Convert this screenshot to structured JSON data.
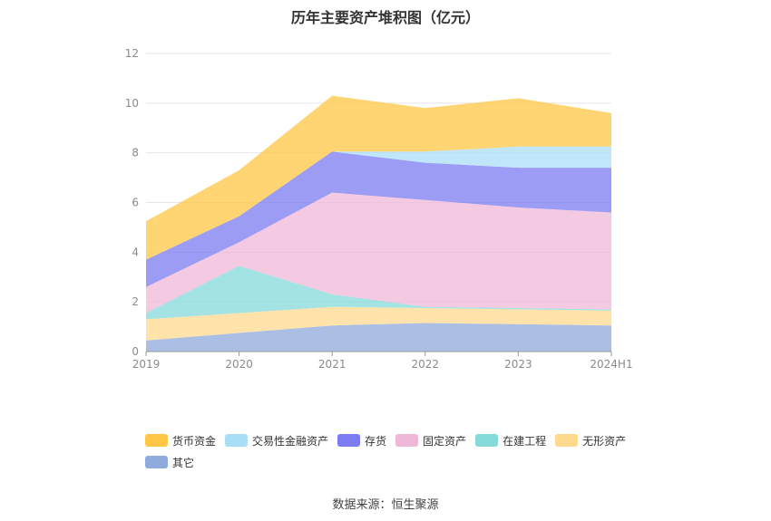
{
  "chart_data": {
    "type": "area",
    "stacked": true,
    "title": "历年主要资产堆积图（亿元）",
    "x": [
      "2019",
      "2020",
      "2021",
      "2022",
      "2023",
      "2024H1"
    ],
    "ylim": [
      0,
      12
    ],
    "yticks": [
      "0",
      "2",
      "4",
      "6",
      "8",
      "10",
      "12"
    ],
    "grid": true,
    "legend_position": "bottom",
    "series": [
      {
        "name": "其它",
        "color": "#8faadc",
        "values": [
          0.45,
          0.75,
          1.05,
          1.15,
          1.1,
          1.05
        ]
      },
      {
        "name": "无形资产",
        "color": "#ffd98e",
        "values": [
          0.85,
          0.8,
          0.75,
          0.6,
          0.6,
          0.6
        ]
      },
      {
        "name": "在建工程",
        "color": "#86d9d9",
        "values": [
          0.25,
          1.9,
          0.5,
          0.05,
          0.05,
          0.05
        ]
      },
      {
        "name": "固定资产",
        "color": "#f0b8d8",
        "values": [
          1.05,
          0.95,
          4.1,
          4.3,
          4.05,
          3.9
        ]
      },
      {
        "name": "存货",
        "color": "#7b7bf2",
        "values": [
          1.1,
          1.05,
          1.65,
          1.5,
          1.6,
          1.8
        ]
      },
      {
        "name": "交易性金融资产",
        "color": "#a9def7",
        "values": [
          0,
          0,
          0,
          0.45,
          0.85,
          0.85
        ]
      },
      {
        "name": "货币资金",
        "color": "#ffc745",
        "values": [
          1.55,
          1.85,
          2.25,
          1.75,
          1.95,
          1.35
        ]
      }
    ],
    "legend_order": [
      "货币资金",
      "交易性金融资产",
      "存货",
      "固定资产",
      "在建工程",
      "无形资产",
      "其它"
    ]
  },
  "footer": {
    "source": "数据来源：恒生聚源"
  }
}
